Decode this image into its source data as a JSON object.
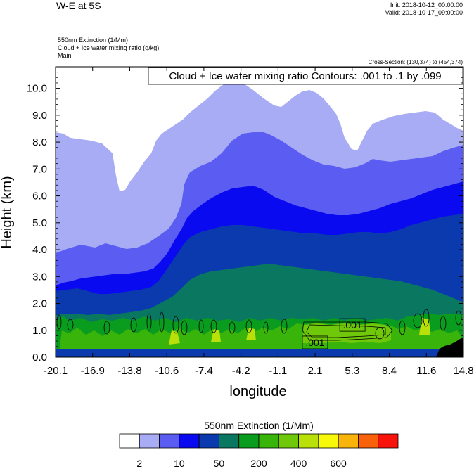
{
  "header": {
    "title": "W-E at 5S",
    "init": "Init: 2018-10-12_00:00:00",
    "valid": "Valid: 2018-10-17_09:00:00",
    "field1": "550nm Extinction   (1/Mm)",
    "field2": "Cloud + Ice water mixing ratio   (g/kg)",
    "field3": "Main",
    "cross_section": "Cross-Section: (130,374) to (454,374)"
  },
  "chart_data": {
    "type": "heatmap",
    "contour_title": "Cloud + Ice water mixing ratio Contours: .001 to .1 by .099",
    "xlabel": "longitude",
    "ylabel": "Height (km)",
    "xlim": [
      -20.1,
      14.8
    ],
    "ylim": [
      0.0,
      10.8
    ],
    "x_ticks": [
      "-20.1",
      "-16.9",
      "-13.8",
      "-10.6",
      "-7.4",
      "-4.2",
      "-1.1",
      "2.1",
      "5.3",
      "8.4",
      "11.6",
      "14.8"
    ],
    "y_ticks": [
      "0.0",
      "1.0",
      "2.0",
      "3.0",
      "4.0",
      "5.0",
      "6.0",
      "7.0",
      "8.0",
      "9.0",
      "10.0"
    ],
    "contour_labels": [
      {
        "text": ".001",
        "lon": 5.3,
        "height": 1.2
      },
      {
        "text": ".001",
        "lon": 2.1,
        "height": 0.55
      }
    ],
    "colorbar": {
      "title": "550nm Extinction  (1/Mm)",
      "colors": [
        "#ffffff",
        "#a8acf4",
        "#5a5cf2",
        "#0a0af0",
        "#0a3aae",
        "#0a7860",
        "#0a9c1e",
        "#38b40a",
        "#70c80a",
        "#bae00a",
        "#f8f80a",
        "#f8b40a",
        "#f8620a",
        "#f8140a"
      ],
      "labels": [
        "2",
        "10",
        "50",
        "200",
        "400",
        "600"
      ]
    },
    "grid": false
  }
}
